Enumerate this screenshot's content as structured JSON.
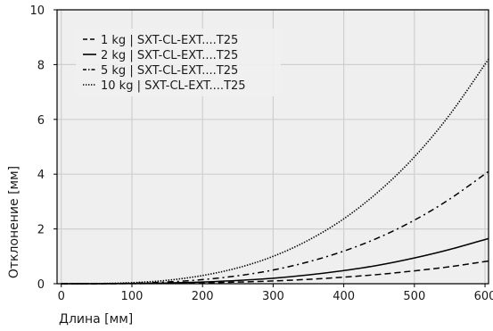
{
  "chart_data": {
    "type": "line",
    "title": "",
    "xlabel": "Длина [мм]",
    "ylabel": "Отклонение [мм]",
    "xlim": [
      -6,
      605
    ],
    "ylim": [
      0,
      10
    ],
    "xticks": [
      0,
      100,
      200,
      300,
      400,
      500,
      600
    ],
    "yticks": [
      0,
      2,
      4,
      6,
      8,
      10
    ],
    "grid": true,
    "legend_position": "top-left",
    "background": "#efefef",
    "line_color": "#000000",
    "series": [
      {
        "name": "1 kg | SXT-CL-EXT....T25",
        "linestyle": "dashed",
        "x": [
          0,
          50,
          100,
          150,
          200,
          250,
          300,
          350,
          400,
          450,
          500,
          550,
          605
        ],
        "values": [
          0,
          0.0005,
          0.004,
          0.013,
          0.03,
          0.06,
          0.1,
          0.16,
          0.24,
          0.34,
          0.47,
          0.62,
          0.83
        ]
      },
      {
        "name": "2 kg | SXT-CL-EXT....T25",
        "linestyle": "solid",
        "x": [
          0,
          50,
          100,
          150,
          200,
          250,
          300,
          350,
          400,
          450,
          500,
          550,
          605
        ],
        "values": [
          0,
          0.001,
          0.008,
          0.026,
          0.06,
          0.12,
          0.2,
          0.32,
          0.48,
          0.68,
          0.94,
          1.25,
          1.65
        ]
      },
      {
        "name": "5 kg | SXT-CL-EXT....T25",
        "linestyle": "dashdot",
        "x": [
          0,
          50,
          100,
          150,
          200,
          250,
          300,
          350,
          400,
          450,
          500,
          550,
          605
        ],
        "values": [
          0,
          0.002,
          0.019,
          0.063,
          0.15,
          0.29,
          0.5,
          0.8,
          1.19,
          1.69,
          2.32,
          3.09,
          4.1
        ]
      },
      {
        "name": "10 kg | SXT-CL-EXT....T25",
        "linestyle": "dotted",
        "x": [
          0,
          50,
          100,
          150,
          200,
          250,
          300,
          350,
          400,
          450,
          500,
          550,
          605
        ],
        "values": [
          0,
          0.005,
          0.037,
          0.125,
          0.3,
          0.58,
          1.0,
          1.59,
          2.37,
          3.38,
          4.63,
          6.17,
          8.2
        ]
      }
    ]
  }
}
